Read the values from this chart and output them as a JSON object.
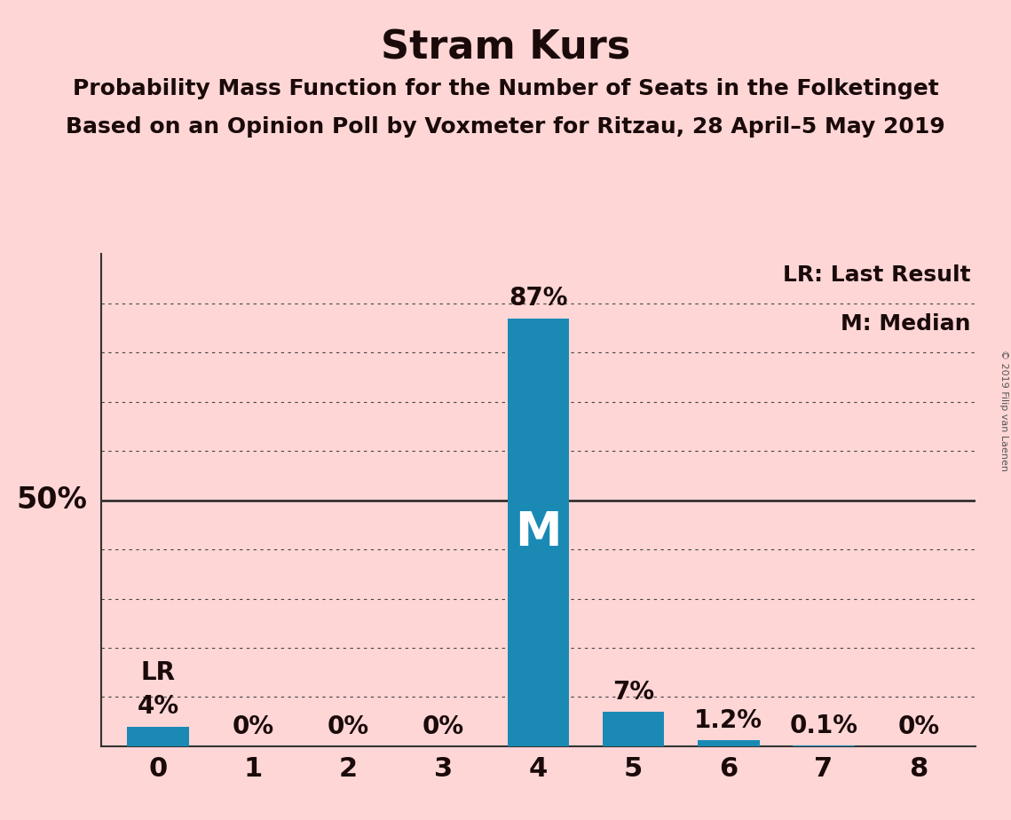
{
  "title": "Stram Kurs",
  "subtitle1": "Probability Mass Function for the Number of Seats in the Folketinget",
  "subtitle2": "Based on an Opinion Poll by Voxmeter for Ritzau, 28 April–5 May 2019",
  "copyright": "© 2019 Filip van Laenen",
  "categories": [
    0,
    1,
    2,
    3,
    4,
    5,
    6,
    7,
    8
  ],
  "values": [
    4.0,
    0.0,
    0.0,
    0.0,
    87.0,
    7.0,
    1.2,
    0.1,
    0.0
  ],
  "labels": [
    "4%",
    "0%",
    "0%",
    "0%",
    "87%",
    "7%",
    "1.2%",
    "0.1%",
    "0%"
  ],
  "bar_color": "#1a8ab5",
  "background_color": "#FFD6D6",
  "median_bar": 4,
  "lr_bar": 0,
  "lr_value": 4.0,
  "ylim": [
    0,
    100
  ],
  "grid_lines": [
    10,
    20,
    30,
    40,
    50,
    60,
    70,
    80,
    90
  ],
  "y50_label": "50%",
  "legend_lr": "LR: Last Result",
  "legend_m": "M: Median",
  "title_fontsize": 32,
  "subtitle_fontsize": 18,
  "label_fontsize": 20,
  "axis_fontsize": 22,
  "ylabel_50_fontsize": 24,
  "legend_fontsize": 18,
  "median_fontsize": 38
}
